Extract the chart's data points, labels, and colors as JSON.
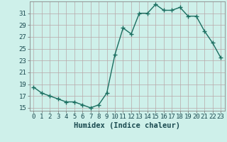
{
  "x": [
    0,
    1,
    2,
    3,
    4,
    5,
    6,
    7,
    8,
    9,
    10,
    11,
    12,
    13,
    14,
    15,
    16,
    17,
    18,
    19,
    20,
    21,
    22,
    23
  ],
  "y": [
    18.5,
    17.5,
    17.0,
    16.5,
    16.0,
    16.0,
    15.5,
    15.0,
    15.5,
    17.5,
    24.0,
    28.5,
    27.5,
    31.0,
    31.0,
    32.5,
    31.5,
    31.5,
    32.0,
    30.5,
    30.5,
    28.0,
    26.0,
    23.5
  ],
  "line_color": "#1a6e60",
  "marker": "+",
  "marker_size": 4,
  "line_width": 1.0,
  "bg_color": "#cef0ea",
  "grid_color": "#b8a8a8",
  "xlabel": "Humidex (Indice chaleur)",
  "xlim": [
    -0.5,
    23.5
  ],
  "ylim": [
    14.5,
    33.0
  ],
  "yticks": [
    15,
    17,
    19,
    21,
    23,
    25,
    27,
    29,
    31
  ],
  "xticks": [
    0,
    1,
    2,
    3,
    4,
    5,
    6,
    7,
    8,
    9,
    10,
    11,
    12,
    13,
    14,
    15,
    16,
    17,
    18,
    19,
    20,
    21,
    22,
    23
  ],
  "xlabel_fontsize": 7.5,
  "tick_fontsize": 6.5,
  "label_color": "#1a4a50"
}
